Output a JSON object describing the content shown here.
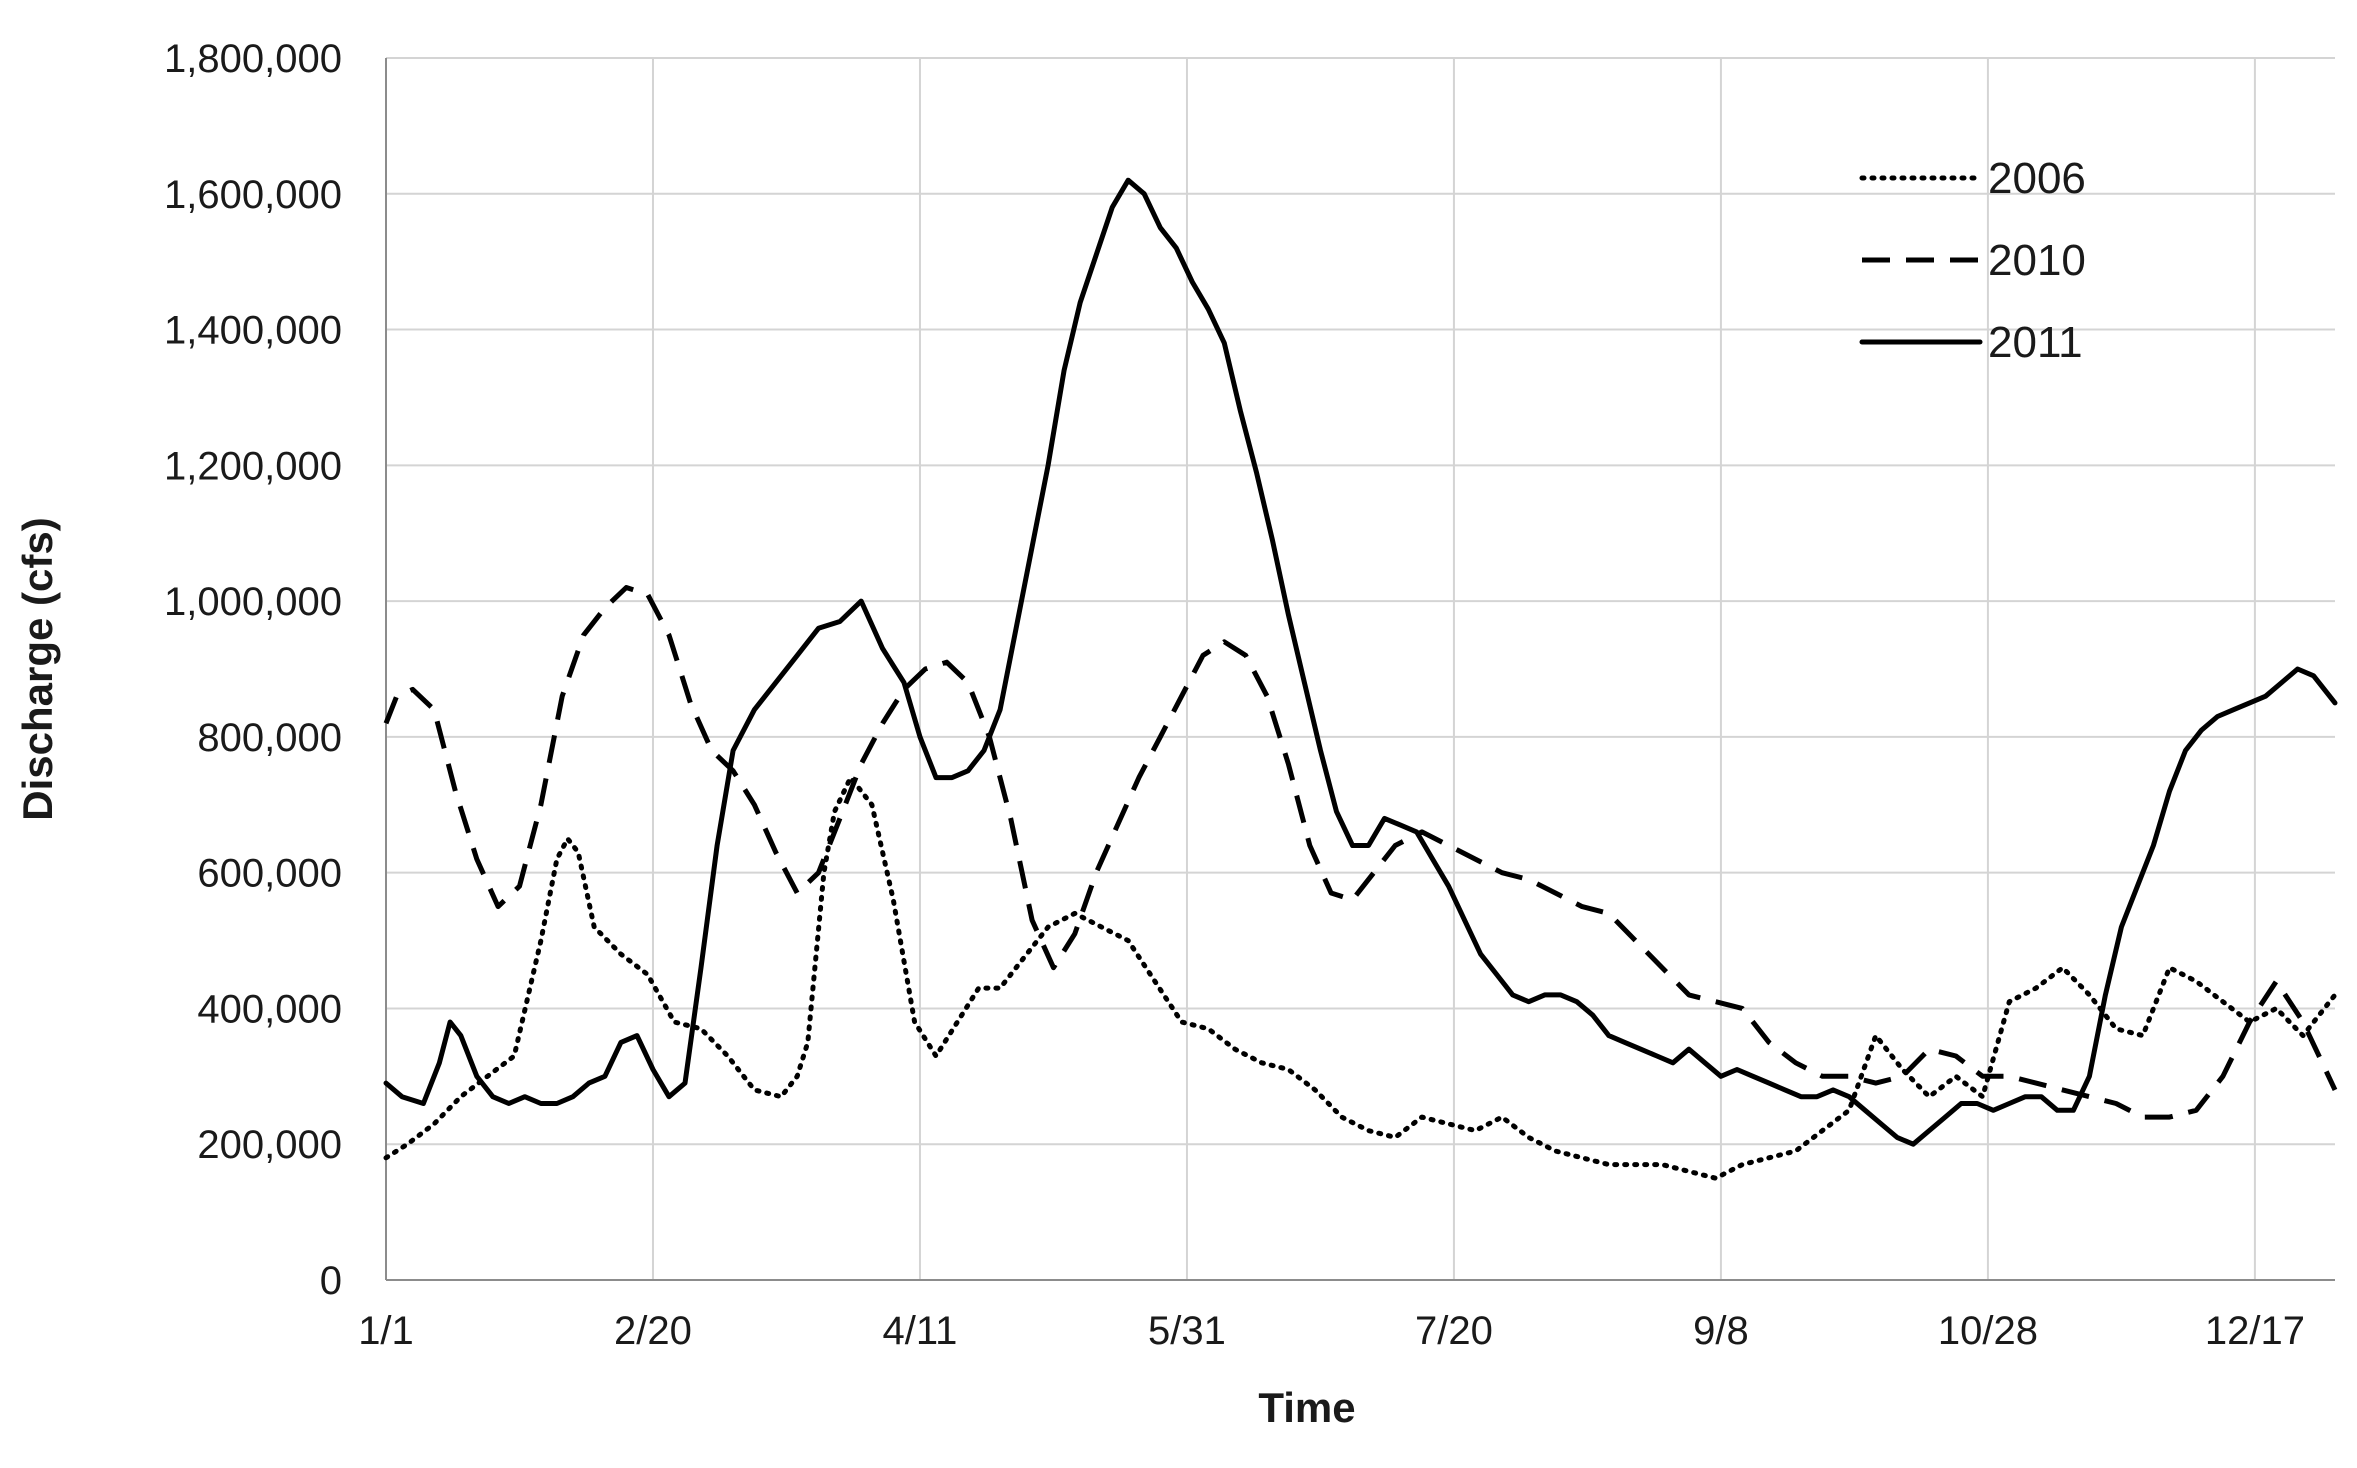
{
  "chart_data": {
    "type": "line",
    "title": "",
    "xlabel": "Time",
    "ylabel": "Discharge (cfs)",
    "x_unit": "day of year",
    "xlim": [
      1,
      366
    ],
    "ylim": [
      0,
      1800000
    ],
    "x_ticks": [
      {
        "day": 1,
        "label": "1/1"
      },
      {
        "day": 51,
        "label": "2/20"
      },
      {
        "day": 101,
        "label": "4/11"
      },
      {
        "day": 151,
        "label": "5/31"
      },
      {
        "day": 201,
        "label": "7/20"
      },
      {
        "day": 251,
        "label": "9/8"
      },
      {
        "day": 301,
        "label": "10/28"
      },
      {
        "day": 351,
        "label": "12/17"
      }
    ],
    "y_ticks": [
      {
        "value": 0,
        "label": "0"
      },
      {
        "value": 200000,
        "label": "200,000"
      },
      {
        "value": 400000,
        "label": "400,000"
      },
      {
        "value": 600000,
        "label": "600,000"
      },
      {
        "value": 800000,
        "label": "800,000"
      },
      {
        "value": 1000000,
        "label": "1,000,000"
      },
      {
        "value": 1200000,
        "label": "1,200,000"
      },
      {
        "value": 1400000,
        "label": "1,400,000"
      },
      {
        "value": 1600000,
        "label": "1,600,000"
      },
      {
        "value": 1800000,
        "label": "1,800,000"
      }
    ],
    "grid": true,
    "legend_position": "top-right",
    "series": [
      {
        "name": "2006",
        "style": "dotted",
        "color": "#000000",
        "x": [
          1,
          5,
          10,
          15,
          20,
          25,
          30,
          33,
          35,
          37,
          40,
          45,
          50,
          55,
          60,
          65,
          70,
          75,
          78,
          80,
          83,
          85,
          88,
          92,
          96,
          100,
          104,
          108,
          112,
          116,
          120,
          125,
          130,
          135,
          140,
          145,
          150,
          155,
          160,
          165,
          170,
          175,
          180,
          185,
          190,
          195,
          200,
          205,
          210,
          215,
          220,
          225,
          230,
          235,
          240,
          245,
          250,
          255,
          260,
          265,
          270,
          275,
          280,
          285,
          290,
          295,
          300,
          305,
          310,
          315,
          320,
          325,
          330,
          335,
          340,
          345,
          350,
          355,
          360,
          366
        ],
        "y": [
          180000,
          200000,
          230000,
          270000,
          300000,
          330000,
          500000,
          620000,
          650000,
          630000,
          520000,
          480000,
          450000,
          380000,
          370000,
          330000,
          280000,
          270000,
          300000,
          350000,
          600000,
          690000,
          740000,
          700000,
          560000,
          380000,
          330000,
          380000,
          430000,
          430000,
          470000,
          520000,
          540000,
          520000,
          500000,
          440000,
          380000,
          370000,
          340000,
          320000,
          310000,
          280000,
          240000,
          220000,
          210000,
          240000,
          230000,
          220000,
          240000,
          210000,
          190000,
          180000,
          170000,
          170000,
          170000,
          160000,
          150000,
          170000,
          180000,
          190000,
          220000,
          250000,
          360000,
          310000,
          270000,
          300000,
          270000,
          410000,
          430000,
          460000,
          420000,
          370000,
          360000,
          460000,
          440000,
          410000,
          380000,
          400000,
          360000,
          420000
        ]
      },
      {
        "name": "2010",
        "style": "dashed",
        "color": "#000000",
        "x": [
          1,
          3,
          6,
          10,
          14,
          18,
          22,
          26,
          30,
          34,
          38,
          42,
          46,
          50,
          54,
          58,
          62,
          66,
          70,
          74,
          78,
          82,
          86,
          90,
          94,
          98,
          102,
          106,
          110,
          114,
          118,
          122,
          126,
          130,
          134,
          138,
          142,
          146,
          150,
          154,
          158,
          162,
          166,
          170,
          174,
          178,
          182,
          186,
          190,
          195,
          200,
          205,
          210,
          215,
          220,
          225,
          230,
          235,
          240,
          245,
          250,
          255,
          260,
          265,
          270,
          275,
          280,
          285,
          290,
          295,
          300,
          305,
          310,
          315,
          320,
          325,
          330,
          335,
          340,
          345,
          350,
          355,
          360,
          366
        ],
        "y": [
          820000,
          860000,
          870000,
          840000,
          720000,
          620000,
          550000,
          580000,
          700000,
          860000,
          950000,
          990000,
          1020000,
          1010000,
          950000,
          850000,
          780000,
          750000,
          700000,
          630000,
          570000,
          600000,
          680000,
          760000,
          820000,
          870000,
          900000,
          910000,
          880000,
          800000,
          680000,
          530000,
          460000,
          510000,
          600000,
          670000,
          740000,
          800000,
          860000,
          920000,
          940000,
          920000,
          860000,
          760000,
          640000,
          570000,
          560000,
          600000,
          640000,
          660000,
          640000,
          620000,
          600000,
          590000,
          570000,
          550000,
          540000,
          500000,
          460000,
          420000,
          410000,
          400000,
          350000,
          320000,
          300000,
          300000,
          290000,
          300000,
          340000,
          330000,
          300000,
          300000,
          290000,
          280000,
          270000,
          260000,
          240000,
          240000,
          250000,
          300000,
          380000,
          440000,
          380000,
          280000
        ]
      },
      {
        "name": "2011",
        "style": "solid",
        "color": "#000000",
        "x": [
          1,
          4,
          8,
          11,
          13,
          15,
          18,
          21,
          24,
          27,
          30,
          33,
          36,
          39,
          42,
          45,
          48,
          51,
          54,
          57,
          60,
          63,
          66,
          70,
          74,
          78,
          82,
          86,
          90,
          94,
          98,
          101,
          104,
          107,
          110,
          113,
          116,
          119,
          122,
          125,
          128,
          131,
          134,
          137,
          140,
          143,
          146,
          149,
          152,
          155,
          158,
          161,
          164,
          167,
          170,
          173,
          176,
          179,
          182,
          185,
          188,
          191,
          194,
          197,
          200,
          203,
          206,
          209,
          212,
          215,
          218,
          221,
          224,
          227,
          230,
          233,
          236,
          239,
          242,
          245,
          248,
          251,
          254,
          257,
          260,
          263,
          266,
          269,
          272,
          275,
          278,
          281,
          284,
          287,
          290,
          293,
          296,
          299,
          302,
          305,
          308,
          311,
          314,
          317,
          320,
          323,
          326,
          329,
          332,
          335,
          338,
          341,
          344,
          347,
          350,
          353,
          356,
          359,
          362,
          366
        ],
        "y": [
          290000,
          270000,
          260000,
          320000,
          380000,
          360000,
          300000,
          270000,
          260000,
          270000,
          260000,
          260000,
          270000,
          290000,
          300000,
          350000,
          360000,
          310000,
          270000,
          290000,
          460000,
          640000,
          780000,
          840000,
          880000,
          920000,
          960000,
          970000,
          1000000,
          930000,
          880000,
          800000,
          740000,
          740000,
          750000,
          780000,
          840000,
          960000,
          1080000,
          1200000,
          1340000,
          1440000,
          1510000,
          1580000,
          1620000,
          1600000,
          1550000,
          1520000,
          1470000,
          1430000,
          1380000,
          1280000,
          1190000,
          1090000,
          980000,
          880000,
          780000,
          690000,
          640000,
          640000,
          680000,
          670000,
          660000,
          620000,
          580000,
          530000,
          480000,
          450000,
          420000,
          410000,
          420000,
          420000,
          410000,
          390000,
          360000,
          350000,
          340000,
          330000,
          320000,
          340000,
          320000,
          300000,
          310000,
          300000,
          290000,
          280000,
          270000,
          270000,
          280000,
          270000,
          250000,
          230000,
          210000,
          200000,
          220000,
          240000,
          260000,
          260000,
          250000,
          260000,
          270000,
          270000,
          250000,
          250000,
          300000,
          420000,
          520000,
          580000,
          640000,
          720000,
          780000,
          810000,
          830000,
          840000,
          850000,
          860000,
          880000,
          900000,
          890000,
          850000
        ]
      }
    ]
  }
}
